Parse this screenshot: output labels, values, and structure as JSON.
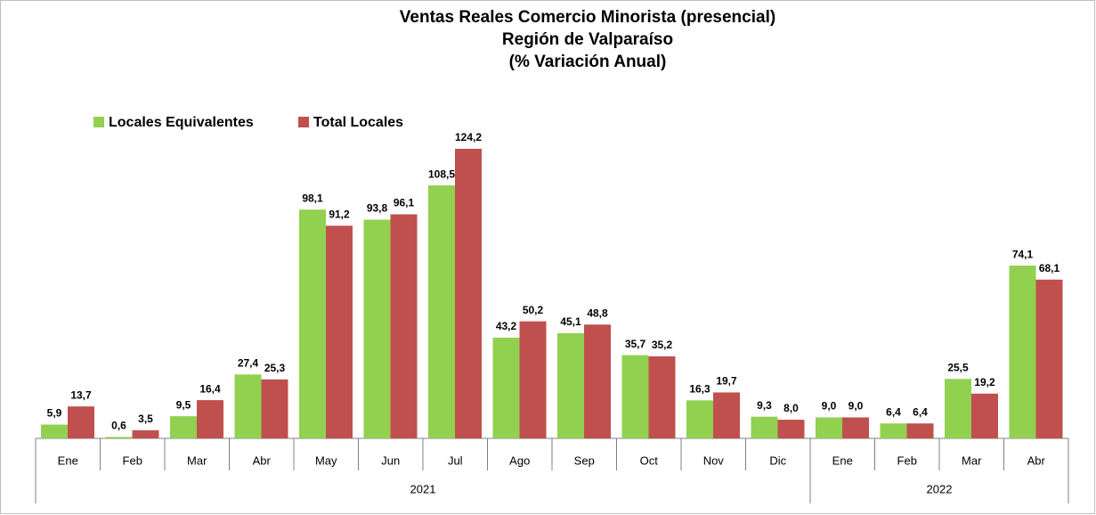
{
  "chart_data": {
    "type": "grouped-bar",
    "title": [
      "Ventas Reales Comercio Minorista (presencial)",
      "Región de Valparaíso",
      "(% Variación Anual)"
    ],
    "category_groups": [
      {
        "label": "2021",
        "categories": [
          "Ene",
          "Feb",
          "Mar",
          "Abr",
          "May",
          "Jun",
          "Jul",
          "Ago",
          "Sep",
          "Oct",
          "Nov",
          "Dic"
        ]
      },
      {
        "label": "2022",
        "categories": [
          "Ene",
          "Feb",
          "Mar",
          "Abr"
        ]
      }
    ],
    "series": [
      {
        "name": "Locales Equivalentes",
        "color": "#92d050",
        "values": [
          5.9,
          0.6,
          9.5,
          27.4,
          98.1,
          93.8,
          108.5,
          43.2,
          45.1,
          35.7,
          16.3,
          9.3,
          9.0,
          6.4,
          25.5,
          74.1
        ],
        "value_labels": [
          "5,9",
          "0,6",
          "9,5",
          "27,4",
          "98,1",
          "93,8",
          "108,5",
          "43,2",
          "45,1",
          "35,7",
          "16,3",
          "9,3",
          "9,0",
          "6,4",
          "25,5",
          "74,1"
        ]
      },
      {
        "name": "Total Locales",
        "color": "#c0504d",
        "values": [
          13.7,
          3.5,
          16.4,
          25.3,
          91.2,
          96.1,
          124.2,
          50.2,
          48.8,
          35.2,
          19.7,
          8.0,
          9.0,
          6.4,
          19.2,
          68.1
        ],
        "value_labels": [
          "13,7",
          "3,5",
          "16,4",
          "25,3",
          "91,2",
          "96,1",
          "124,2",
          "50,2",
          "48,8",
          "35,2",
          "19,7",
          "8,0",
          "9,0",
          "6,4",
          "19,2",
          "68,1"
        ]
      }
    ],
    "legend": "top-left"
  }
}
